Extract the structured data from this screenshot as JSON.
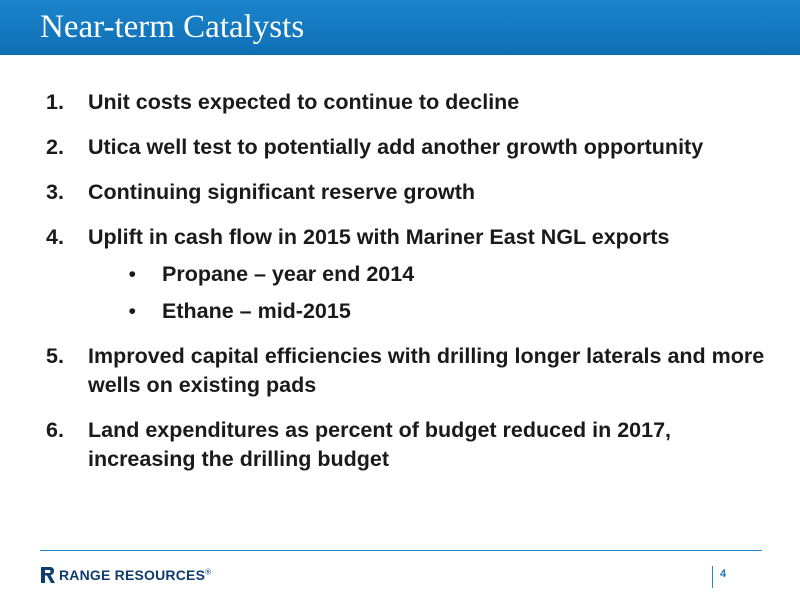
{
  "header": {
    "title": "Near-term Catalysts"
  },
  "items": [
    {
      "number": "1.",
      "text": "Unit costs expected to continue to decline"
    },
    {
      "number": "2.",
      "text": "Utica well test to potentially add another growth opportunity"
    },
    {
      "number": "3.",
      "text": "Continuing significant reserve growth"
    },
    {
      "number": "4.",
      "text": "Uplift in cash flow in 2015 with Mariner East NGL exports",
      "subitems": [
        {
          "bullet": "•",
          "text": "Propane – year end 2014"
        },
        {
          "bullet": "•",
          "text": "Ethane – mid-2015"
        }
      ]
    },
    {
      "number": "5.",
      "text": "Improved capital efficiencies with drilling longer laterals and more wells on existing pads"
    },
    {
      "number": "6.",
      "text": "Land expenditures as percent of budget reduced in 2017, increasing the drilling budget"
    }
  ],
  "footer": {
    "logo_text": "RANGE RESOURCES",
    "logo_registered": "®",
    "page_number": "4"
  },
  "colors": {
    "title_bar": "#1b84cc",
    "accent_line": "#2a86c8",
    "logo_text": "#0f3d6e",
    "body_text": "#1a1a1a"
  }
}
